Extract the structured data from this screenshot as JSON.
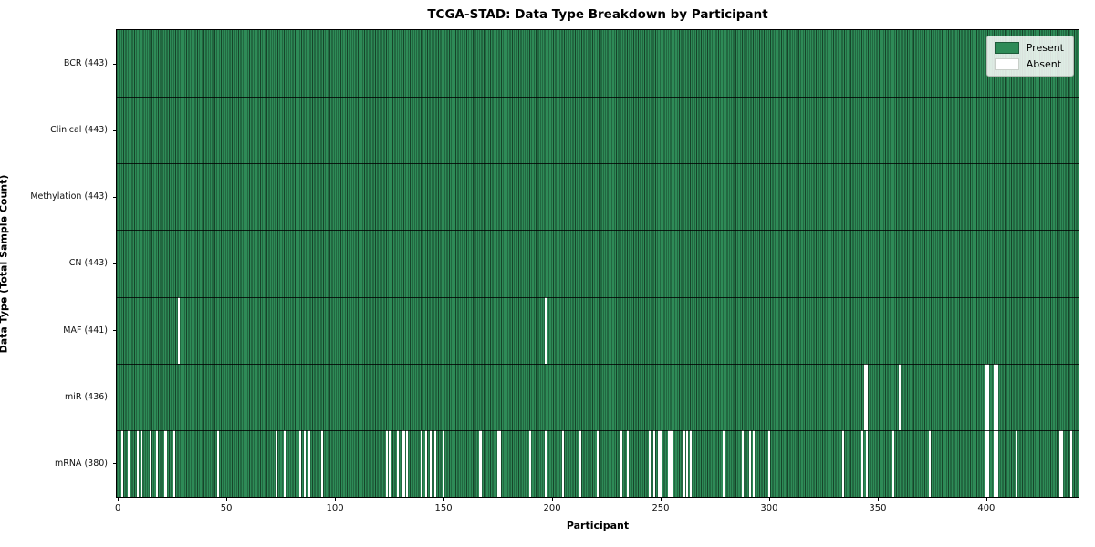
{
  "title": "TCGA-STAD: Data Type Breakdown by Participant",
  "xlabel": "Participant",
  "ylabel": "Data Type (Total Sample Count)",
  "legend": {
    "present_label": "Present",
    "absent_label": "Absent"
  },
  "colors": {
    "present": "#2e8b57",
    "absent": "#ffffff",
    "bar_edge": "#0a1a0f",
    "divider": "#000000"
  },
  "chart_data": {
    "type": "heatmap",
    "title": "TCGA-STAD: Data Type Breakdown by Participant",
    "xlabel": "Participant",
    "ylabel": "Data Type (Total Sample Count)",
    "legend_entries": [
      "Present",
      "Absent"
    ],
    "legend_position": "upper right",
    "n_participants": 443,
    "x_range": [
      0,
      443
    ],
    "x_ticks": [
      0,
      50,
      100,
      150,
      200,
      250,
      300,
      350,
      400
    ],
    "rows": [
      {
        "label": "BCR (443)",
        "data_type": "BCR",
        "present_count": 443,
        "absent_participants": []
      },
      {
        "label": "Clinical (443)",
        "data_type": "Clinical",
        "present_count": 443,
        "absent_participants": []
      },
      {
        "label": "Methylation (443)",
        "data_type": "Methylation",
        "present_count": 443,
        "absent_participants": []
      },
      {
        "label": "CN (443)",
        "data_type": "CN",
        "present_count": 443,
        "absent_participants": []
      },
      {
        "label": "MAF (441)",
        "data_type": "MAF",
        "present_count": 441,
        "absent_participants": [
          28,
          197
        ]
      },
      {
        "label": "miR (436)",
        "data_type": "miR",
        "present_count": 436,
        "absent_participants": [
          344,
          345,
          360,
          400,
          401,
          404,
          405
        ]
      },
      {
        "label": "mRNA (380)",
        "data_type": "mRNA",
        "present_count": 380,
        "absent_participants": [
          2,
          5,
          9,
          11,
          15,
          18,
          22,
          26,
          46,
          73,
          77,
          84,
          86,
          88,
          94,
          124,
          125,
          129,
          131,
          132,
          133,
          140,
          142,
          144,
          146,
          150,
          167,
          175,
          176,
          190,
          197,
          205,
          213,
          221,
          232,
          235,
          245,
          247,
          249,
          250,
          254,
          255,
          261,
          262,
          264,
          279,
          288,
          291,
          293,
          300,
          334,
          343,
          345,
          357,
          374,
          400,
          401,
          404,
          405,
          414,
          434,
          435,
          439
        ]
      }
    ]
  }
}
